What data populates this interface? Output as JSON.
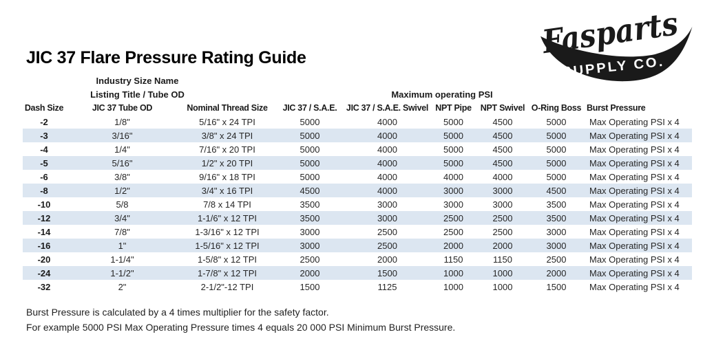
{
  "logo": {
    "brand": "Fasparts",
    "subtitle": "SUPPLY CO.",
    "color": "#1a1a1a"
  },
  "title": "JIC 37 Flare Pressure Rating Guide",
  "table": {
    "group_headers": {
      "industry_line1": "Industry Size Name",
      "industry_line2": "Listing Title / Tube OD",
      "psi_group": "Maximum operating PSI"
    },
    "columns": [
      "Dash Size",
      "JIC 37 Tube OD",
      "Nominal Thread Size",
      "JIC 37 / S.A.E.",
      "JIC 37 / S.A.E. Swivel",
      "NPT Pipe",
      "NPT Swivel",
      "O-Ring Boss",
      "Burst Pressure"
    ],
    "rows": [
      [
        "-2",
        "1/8\"",
        "5/16\" x 24 TPI",
        "5000",
        "4000",
        "5000",
        "4500",
        "5000",
        "Max Operating PSI x 4"
      ],
      [
        "-3",
        "3/16\"",
        "3/8\" x 24 TPI",
        "5000",
        "4000",
        "5000",
        "4500",
        "5000",
        "Max Operating PSI x 4"
      ],
      [
        "-4",
        "1/4\"",
        "7/16\" x 20 TPI",
        "5000",
        "4000",
        "5000",
        "4500",
        "5000",
        "Max Operating PSI x 4"
      ],
      [
        "-5",
        "5/16\"",
        "1/2\" x 20 TPI",
        "5000",
        "4000",
        "5000",
        "4500",
        "5000",
        "Max Operating PSI x 4"
      ],
      [
        "-6",
        "3/8\"",
        "9/16\" x 18 TPI",
        "5000",
        "4000",
        "4000",
        "4000",
        "5000",
        "Max Operating PSI x 4"
      ],
      [
        "-8",
        "1/2\"",
        "3/4\" x 16 TPI",
        "4500",
        "4000",
        "3000",
        "3000",
        "4500",
        "Max Operating PSI x 4"
      ],
      [
        "-10",
        "5/8",
        "7/8 x 14 TPI",
        "3500",
        "3000",
        "3000",
        "3000",
        "3500",
        "Max Operating PSI x 4"
      ],
      [
        "-12",
        "3/4\"",
        "1-1/6\" x 12 TPI",
        "3500",
        "3000",
        "2500",
        "2500",
        "3500",
        "Max Operating PSI x 4"
      ],
      [
        "-14",
        "7/8\"",
        "1-3/16\" x 12 TPI",
        "3000",
        "2500",
        "2500",
        "2500",
        "3000",
        "Max Operating PSI x 4"
      ],
      [
        "-16",
        "1\"",
        "1-5/16\" x 12 TPI",
        "3000",
        "2500",
        "2000",
        "2000",
        "3000",
        "Max Operating PSI x 4"
      ],
      [
        "-20",
        "1-1/4\"",
        "1-5/8\" x 12 TPI",
        "2500",
        "2000",
        "1150",
        "1150",
        "2500",
        "Max Operating PSI x 4"
      ],
      [
        "-24",
        "1-1/2\"",
        "1-7/8\" x 12 TPI",
        "2000",
        "1500",
        "1000",
        "1000",
        "2000",
        "Max Operating PSI x 4"
      ],
      [
        "-32",
        "2\"",
        "2-1/2\"-12 TPI",
        "1500",
        "1125",
        "1000",
        "1000",
        "1500",
        "Max Operating PSI x 4"
      ]
    ],
    "shaded_row_color": "#dce6f1"
  },
  "footer": {
    "line1": "Burst Pressure is calculated by a 4 times multiplier for the safety factor.",
    "line2": "For example 5000 PSI Max Operating Pressure times 4 equals 20 000 PSI Minimum Burst Pressure."
  }
}
